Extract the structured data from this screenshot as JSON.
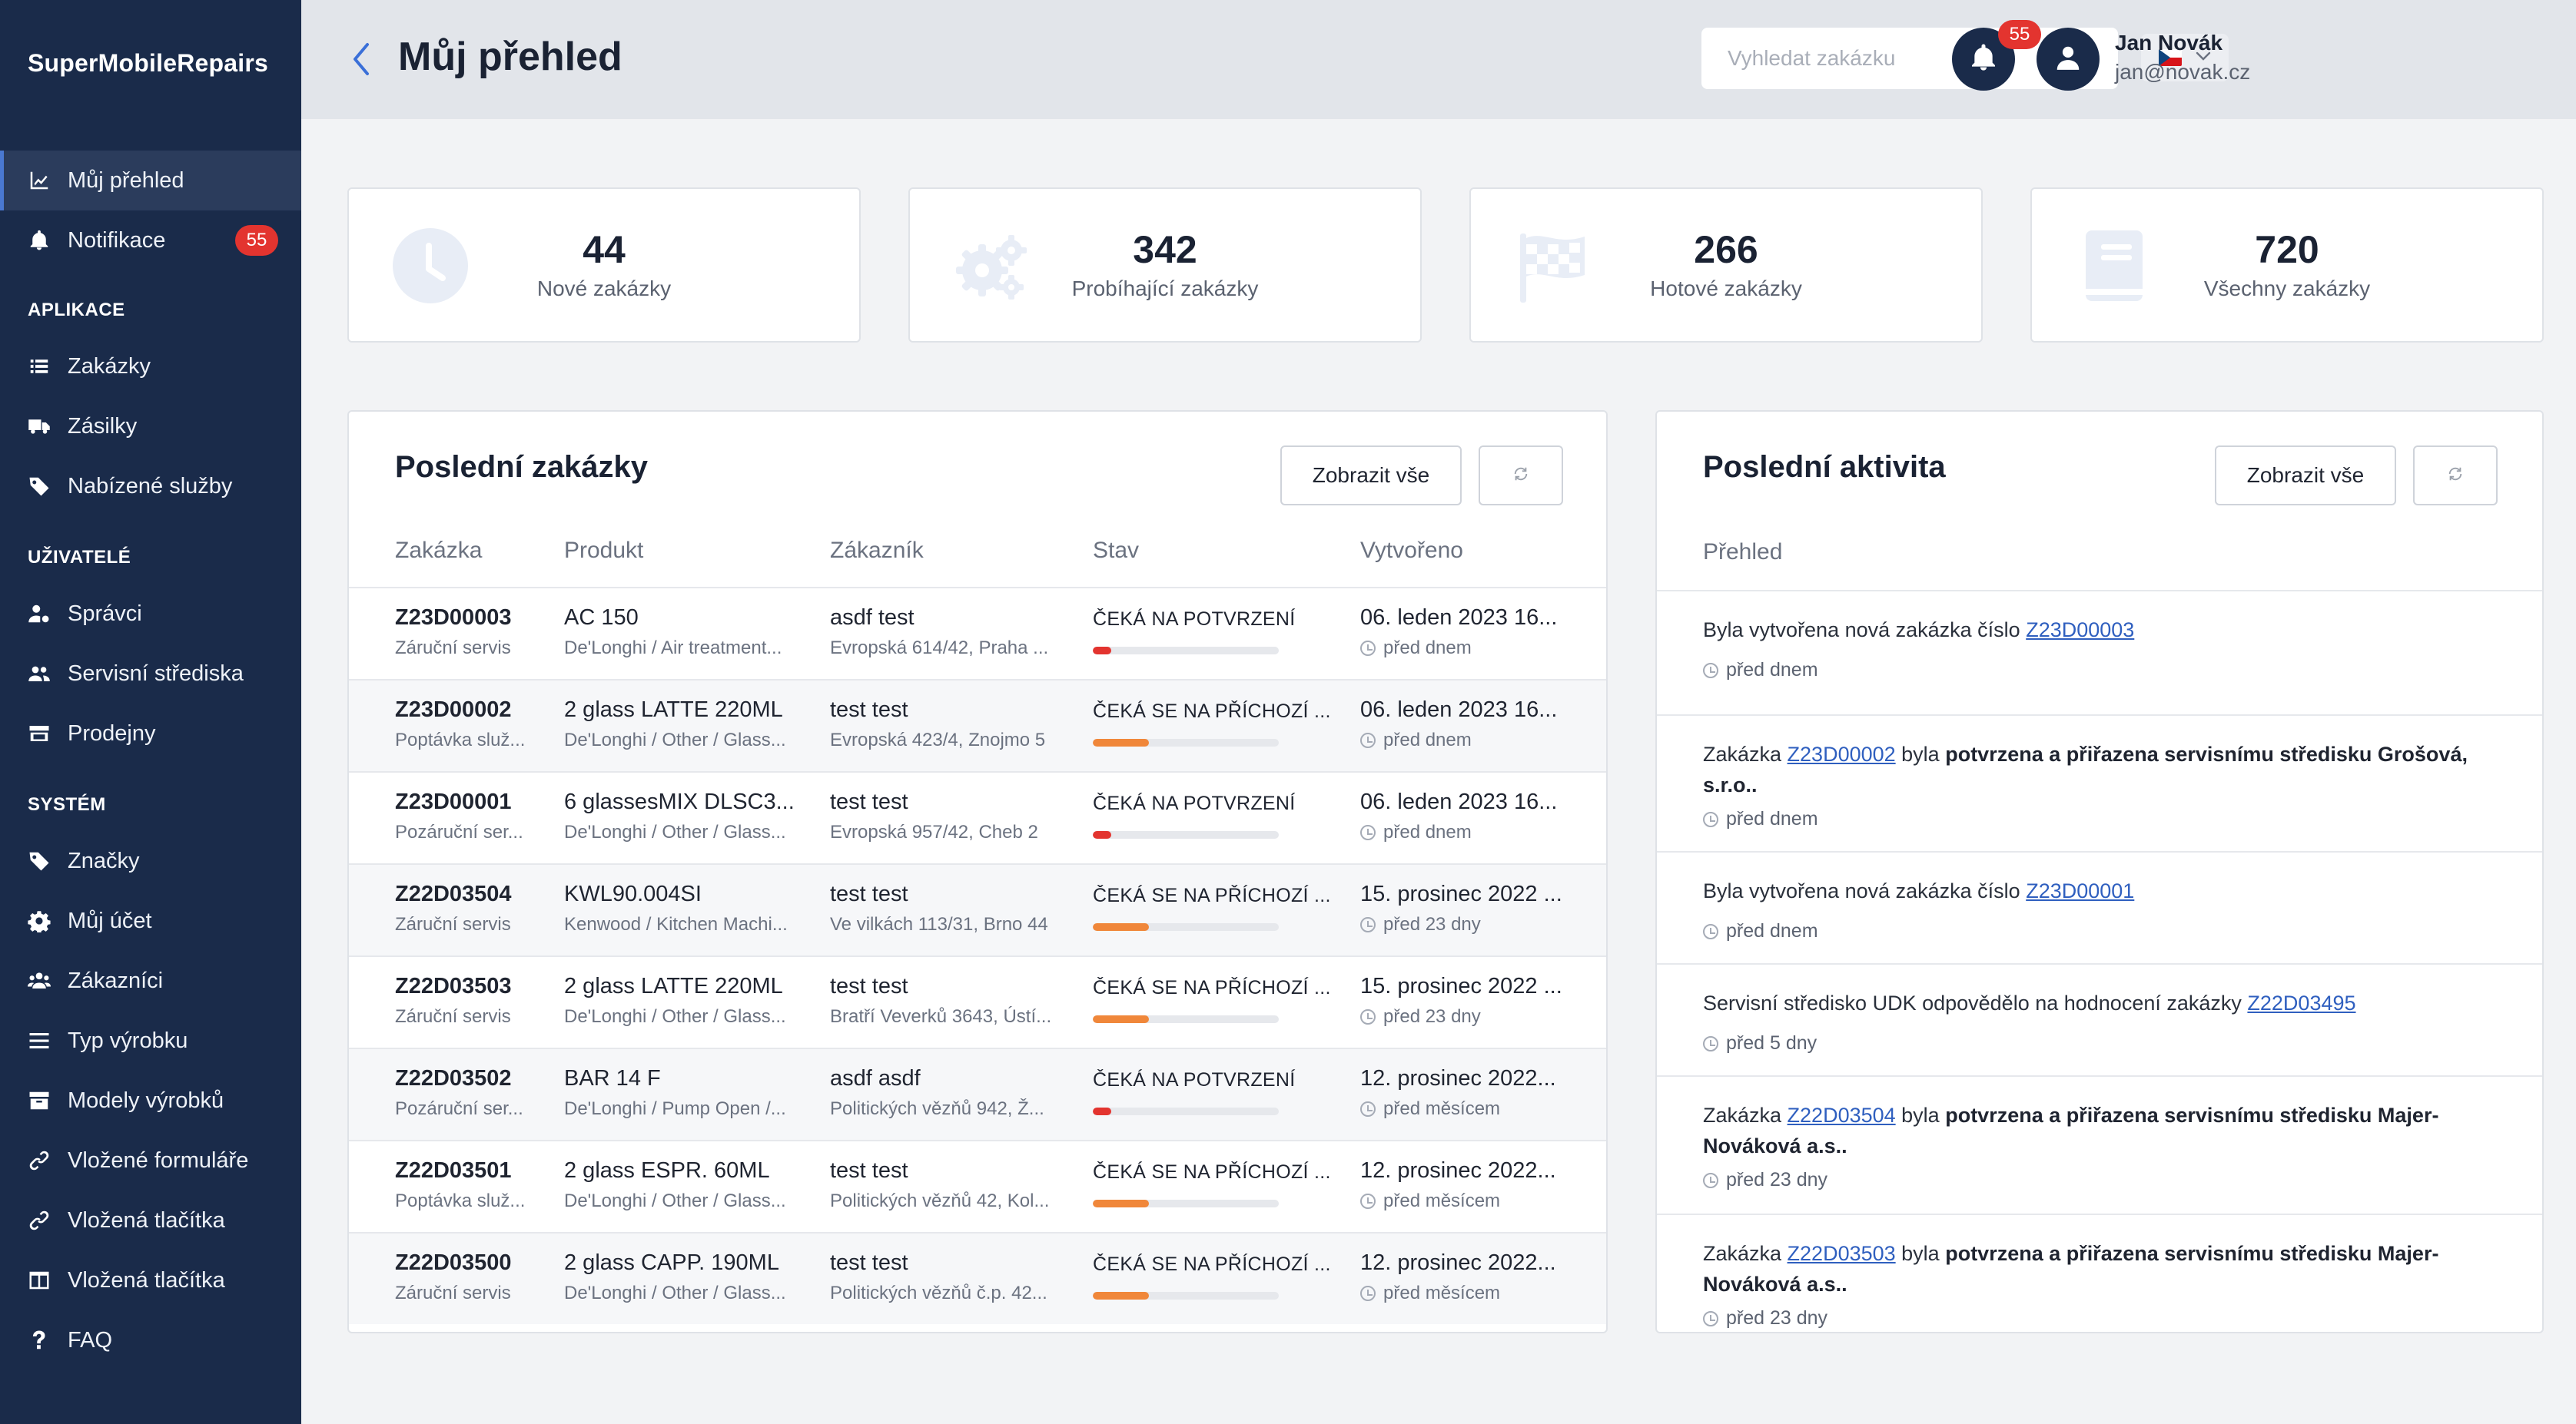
{
  "brand": "SuperMobileRepairs",
  "sidebar": {
    "items": [
      {
        "label": "Můj přehled",
        "icon": "chart-line-icon"
      },
      {
        "label": "Notifikace",
        "icon": "bell-icon",
        "badge": "55"
      },
      {
        "label": "Zakázky",
        "icon": "list-icon"
      },
      {
        "label": "Zásilky",
        "icon": "truck-icon"
      },
      {
        "label": "Nabízené služby",
        "icon": "tag-icon"
      },
      {
        "label": "Správci",
        "icon": "user-cog-icon"
      },
      {
        "label": "Servisní střediska",
        "icon": "users-icon"
      },
      {
        "label": "Prodejny",
        "icon": "store-icon"
      },
      {
        "label": "Značky",
        "icon": "tag-icon"
      },
      {
        "label": "Můj účet",
        "icon": "gear-icon"
      },
      {
        "label": "Zákazníci",
        "icon": "users-group-icon"
      },
      {
        "label": "Typ výrobku",
        "icon": "bars-icon"
      },
      {
        "label": "Modely výrobků",
        "icon": "archive-icon"
      },
      {
        "label": "Vložené formuláře",
        "icon": "link-icon"
      },
      {
        "label": "Vložená tlačítka",
        "icon": "link-icon"
      },
      {
        "label": "Vložená tlačítka",
        "icon": "table-icon"
      },
      {
        "label": "FAQ",
        "icon": "question-icon"
      }
    ],
    "sections": [
      "APLIKACE",
      "UŽIVATELÉ",
      "SYSTÉM"
    ]
  },
  "header": {
    "title": "Můj přehled",
    "search_placeholder": "Vyhledat zakázku",
    "notifications_badge": "55",
    "user_name": "Jan Novák",
    "user_email": "jan@novak.cz"
  },
  "stats": [
    {
      "value": "44",
      "label": "Nové zakázky",
      "icon": "clock-icon"
    },
    {
      "value": "342",
      "label": "Probíhající zakázky",
      "icon": "gears-icon"
    },
    {
      "value": "266",
      "label": "Hotové zakázky",
      "icon": "flag-checkered-icon"
    },
    {
      "value": "720",
      "label": "Všechny zakázky",
      "icon": "book-icon"
    }
  ],
  "orders": {
    "title": "Poslední zakázky",
    "show_all": "Zobrazit vše",
    "columns": [
      "Zakázka",
      "Produkt",
      "Zákazník",
      "Stav",
      "Vytvořeno"
    ],
    "rows": [
      {
        "id": "Z23D00003",
        "type": "Záruční servis",
        "product": "AC 150",
        "product_sub": "De'Longhi / Air treatment...",
        "customer": "asdf test",
        "address": "Evropská 614/42, Praha ...",
        "status": "ČEKÁ NA POTVRZENÍ",
        "progress": 0.1,
        "created": "06. leden 2023 16...",
        "ago": "před dnem"
      },
      {
        "id": "Z23D00002",
        "type": "Poptávka služ...",
        "product": "2 glass LATTE 220ML",
        "product_sub": "De'Longhi / Other / Glass...",
        "customer": "test test",
        "address": "Evropská 423/4, Znojmo 5",
        "status": "ČEKÁ SE NA PŘÍCHOZÍ ...",
        "progress": 0.3,
        "created": "06. leden 2023 16...",
        "ago": "před dnem"
      },
      {
        "id": "Z23D00001",
        "type": "Pozáruční ser...",
        "product": "6 glassesMIX DLSC3...",
        "product_sub": "De'Longhi / Other / Glass...",
        "customer": "test test",
        "address": "Evropská 957/42, Cheb 2",
        "status": "ČEKÁ NA POTVRZENÍ",
        "progress": 0.1,
        "created": "06. leden 2023 16...",
        "ago": "před dnem"
      },
      {
        "id": "Z22D03504",
        "type": "Záruční servis",
        "product": "KWL90.004SI",
        "product_sub": "Kenwood / Kitchen Machi...",
        "customer": "test test",
        "address": "Ve vilkách 113/31, Brno 44",
        "status": "ČEKÁ SE NA PŘÍCHOZÍ ...",
        "progress": 0.3,
        "created": "15. prosinec 2022 ...",
        "ago": "před 23 dny"
      },
      {
        "id": "Z22D03503",
        "type": "Záruční servis",
        "product": "2 glass LATTE 220ML",
        "product_sub": "De'Longhi / Other / Glass...",
        "customer": "test test",
        "address": "Bratří Veverků 3643, Ústí...",
        "status": "ČEKÁ SE NA PŘÍCHOZÍ ...",
        "progress": 0.3,
        "created": "15. prosinec 2022 ...",
        "ago": "před 23 dny"
      },
      {
        "id": "Z22D03502",
        "type": "Pozáruční ser...",
        "product": "BAR 14 F",
        "product_sub": "De'Longhi / Pump Open /...",
        "customer": "asdf asdf",
        "address": "Politických vězňů 942, Ž...",
        "status": "ČEKÁ NA POTVRZENÍ",
        "progress": 0.1,
        "created": "12. prosinec 2022...",
        "ago": "před měsícem"
      },
      {
        "id": "Z22D03501",
        "type": "Poptávka služ...",
        "product": "2 glass ESPR. 60ML",
        "product_sub": "De'Longhi / Other / Glass...",
        "customer": "test test",
        "address": "Politických vězňů 42, Kol...",
        "status": "ČEKÁ SE NA PŘÍCHOZÍ ...",
        "progress": 0.3,
        "created": "12. prosinec 2022...",
        "ago": "před měsícem"
      },
      {
        "id": "Z22D03500",
        "type": "Záruční servis",
        "product": "2 glass CAPP. 190ML",
        "product_sub": "De'Longhi / Other / Glass...",
        "customer": "test test",
        "address": "Politických vězňů č.p. 42...",
        "status": "ČEKÁ SE NA PŘÍCHOZÍ ...",
        "progress": 0.3,
        "created": "12. prosinec 2022...",
        "ago": "před měsícem"
      }
    ]
  },
  "activity": {
    "title": "Poslední aktivita",
    "show_all": "Zobrazit vše",
    "header": "Přehled",
    "items": [
      {
        "pre": "Byla vytvořena nová zakázka číslo ",
        "link": "Z23D00003",
        "post": "",
        "bold": "",
        "ago": "před dnem"
      },
      {
        "pre": "Zakázka ",
        "link": "Z23D00002",
        "post": " byla ",
        "bold": "potvrzena a přiřazena servisnímu středisku Grošová, s.r.o..",
        "ago": "před dnem"
      },
      {
        "pre": "Byla vytvořena nová zakázka číslo ",
        "link": "Z23D00001",
        "post": "",
        "bold": "",
        "ago": "před dnem"
      },
      {
        "pre": "Servisní středisko UDK odpovědělo na hodnocení zakázky ",
        "link": "Z22D03495",
        "post": "",
        "bold": "",
        "ago": "před 5 dny"
      },
      {
        "pre": "Zakázka ",
        "link": "Z22D03504",
        "post": " byla ",
        "bold": "potvrzena a přiřazena servisnímu středisku Majer-Nováková a.s..",
        "ago": "před 23 dny"
      },
      {
        "pre": "Zakázka ",
        "link": "Z22D03503",
        "post": " byla ",
        "bold": "potvrzena a přiřazena servisnímu středisku Majer-Nováková a.s..",
        "ago": "před 23 dny"
      }
    ]
  },
  "colors": {
    "sidebar": "#1a2b4a",
    "badge": "#e3342f",
    "progress_red": "#e3342f",
    "progress_orange": "#f0873a",
    "link": "#2f5fbf"
  }
}
